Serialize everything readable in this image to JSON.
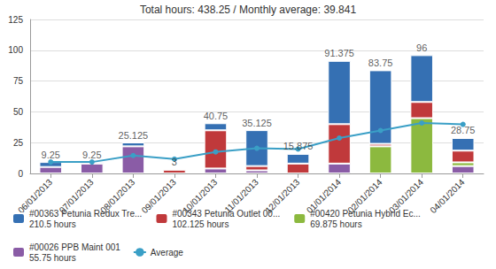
{
  "chart_data": {
    "type": "bar",
    "title": "Total hours: 438.25 / Monthly average: 39.841",
    "stacked": true,
    "grid": true,
    "legend": "bottom",
    "data_labels": true,
    "categories": [
      "06/01/2013",
      "07/01/2013",
      "08/01/2013",
      "09/01/2013",
      "10/01/2013",
      "11/01/2013",
      "12/01/2013",
      "01/01/2014",
      "02/01/2014",
      "03/01/2014",
      "04/01/2014"
    ],
    "totals": [
      9.25,
      9.25,
      25.125,
      3,
      40.75,
      35.125,
      15.875,
      91.375,
      83.75,
      96,
      28.75
    ],
    "ylim": [
      0,
      125
    ],
    "yticks": [
      0,
      25,
      50,
      75,
      100,
      125
    ],
    "series": [
      {
        "name": "#00363 Petunia Redux Tre...\n210.5 hours",
        "type": "bar",
        "color": "#3570b3",
        "values": [
          4,
          1.25,
          3.125,
          null,
          5.75,
          29.125,
          7.875,
          51.375,
          59.75,
          38,
          10.25
        ]
      },
      {
        "name": "#00343 Petunia Outlet 00...\n102.125 hours",
        "type": "bar",
        "color": "#c0393b",
        "values": [
          null,
          null,
          null,
          3,
          31,
          3.5,
          8,
          32,
          2,
          13.125,
          9.5
        ]
      },
      {
        "name": "#00420 Petunia Hybrid Ec...\n69.875 hours",
        "type": "bar",
        "color": "#8cb93f",
        "values": [
          null,
          null,
          null,
          null,
          null,
          null,
          null,
          null,
          22,
          44.875,
          3
        ]
      },
      {
        "name": "#00026 PPB Maint 001\n55.75 hours",
        "type": "bar",
        "color": "#8a5ca6",
        "values": [
          5.25,
          8,
          22,
          null,
          4,
          2.5,
          null,
          8,
          null,
          null,
          6
        ]
      },
      {
        "name": "Average",
        "type": "line",
        "color": "#3a9fc6",
        "marker": "circle",
        "values": [
          9.25,
          9.25,
          14.54,
          11.66,
          17.48,
          20.42,
          19.77,
          28.72,
          34.83,
          40.95,
          39.84
        ]
      }
    ]
  }
}
